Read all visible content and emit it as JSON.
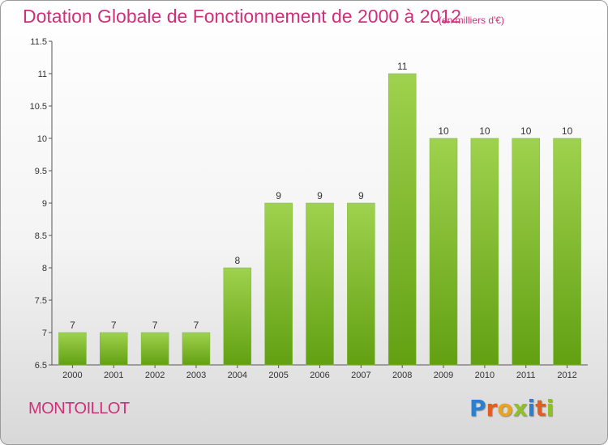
{
  "header": {
    "title": "Dotation Globale de Fonctionnement de 2000 à 2012",
    "unit": "(en milliers d'€)"
  },
  "commune": "MONTOILLOT",
  "logo": {
    "text": "Proxiti",
    "letters": [
      "P",
      "r",
      "o",
      "x",
      "i",
      "t",
      "i"
    ]
  },
  "colors": {
    "bar_light": "#9fd24e",
    "bar_dark": "#62a012",
    "accent": "#d0307a"
  },
  "chart_data": {
    "type": "bar",
    "title": "Dotation Globale de Fonctionnement de 2000 à 2012",
    "unit": "(en milliers d'€)",
    "categories": [
      "2000",
      "2001",
      "2002",
      "2003",
      "2004",
      "2005",
      "2006",
      "2007",
      "2008",
      "2009",
      "2010",
      "2011",
      "2012"
    ],
    "values": [
      7,
      7,
      7,
      7,
      8,
      9,
      9,
      9,
      11,
      10,
      10,
      10,
      10
    ],
    "data_labels": [
      "7",
      "7",
      "7",
      "7",
      "8",
      "9",
      "9",
      "9",
      "11",
      "10",
      "10",
      "10",
      "10"
    ],
    "ylim": [
      6.5,
      11.5
    ],
    "yticks": [
      6.5,
      7,
      7.5,
      8,
      8.5,
      9,
      9.5,
      10,
      10.5,
      11,
      11.5
    ],
    "ytick_labels": [
      "6.5",
      "7",
      "7.5",
      "8",
      "8.5",
      "9",
      "9.5",
      "10",
      "10.5",
      "11",
      "11.5"
    ],
    "grid": false,
    "legend": "none"
  }
}
